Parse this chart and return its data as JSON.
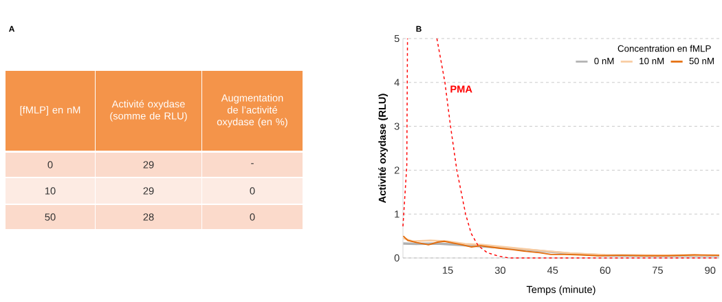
{
  "chart_data": [
    {
      "type": "other",
      "title": "A",
      "annotations": [
        "[fMLP] en nM",
        "Activité oxydase (somme de RLU)",
        "Augmentation de l’activité oxydase (en %)",
        "0",
        "29",
        "-",
        "10",
        "29",
        "0",
        "50",
        "28",
        "0"
      ]
    },
    {
      "type": "line",
      "title": "B",
      "xlabel": "Temps (minute)",
      "ylabel": "Activité oxydase (RLU)",
      "legend_title": "Concentration en fMLP",
      "xlim": [
        2.2,
        92.6
      ],
      "ylim": [
        0,
        5
      ],
      "xticks": [
        15,
        30,
        45,
        60,
        75,
        90
      ],
      "yticks": [
        0,
        1,
        2,
        3,
        4,
        5
      ],
      "grid": "y",
      "legend": "top right",
      "series": [
        {
          "name": "0 nM",
          "color": "#b0b0b0",
          "x": [
            2.3,
            6,
            12,
            18,
            24,
            30,
            40,
            50,
            60,
            75,
            92.6
          ],
          "values": [
            0.33,
            0.32,
            0.33,
            0.3,
            0.27,
            0.24,
            0.17,
            0.1,
            0.06,
            0.05,
            0.05
          ]
        },
        {
          "name": "10 nM",
          "color": "#f8cba0",
          "x": [
            2.3,
            5,
            10,
            15,
            20,
            25,
            30,
            40,
            50,
            60,
            75,
            92.6
          ],
          "values": [
            0.45,
            0.38,
            0.4,
            0.38,
            0.32,
            0.3,
            0.26,
            0.18,
            0.11,
            0.07,
            0.06,
            0.06
          ]
        },
        {
          "name": "50 nM",
          "color": "#e46c0a",
          "x": [
            2.3,
            3.6,
            6.2,
            9.5,
            12.1,
            14,
            16.6,
            19.2,
            21.8,
            24.4,
            27,
            30,
            33.5,
            37.4,
            41.3,
            44.5,
            48.4,
            53,
            58.2,
            64.7,
            71.2,
            77.7,
            85.5,
            92.6
          ],
          "values": [
            0.5,
            0.4,
            0.35,
            0.3,
            0.36,
            0.38,
            0.34,
            0.3,
            0.25,
            0.28,
            0.25,
            0.22,
            0.19,
            0.15,
            0.12,
            0.08,
            0.08,
            0.07,
            0.05,
            0.06,
            0.05,
            0.05,
            0.07,
            0.06
          ]
        },
        {
          "name": "PMA",
          "color": "#ff0000",
          "line_style": "dashed",
          "x": [
            2.2,
            3.3,
            3.5,
            8,
            11.9,
            14.2,
            15.8,
            17.6,
            20.1,
            21.7,
            23.7,
            26.3,
            29.6,
            32.6,
            45,
            60,
            75,
            92.6
          ],
          "values": [
            0.72,
            2.1,
            5,
            null,
            5,
            4.0,
            3.0,
            2.0,
            1.0,
            0.56,
            0.28,
            0.12,
            0.04,
            0,
            0,
            0,
            0,
            0
          ]
        }
      ]
    }
  ]
}
